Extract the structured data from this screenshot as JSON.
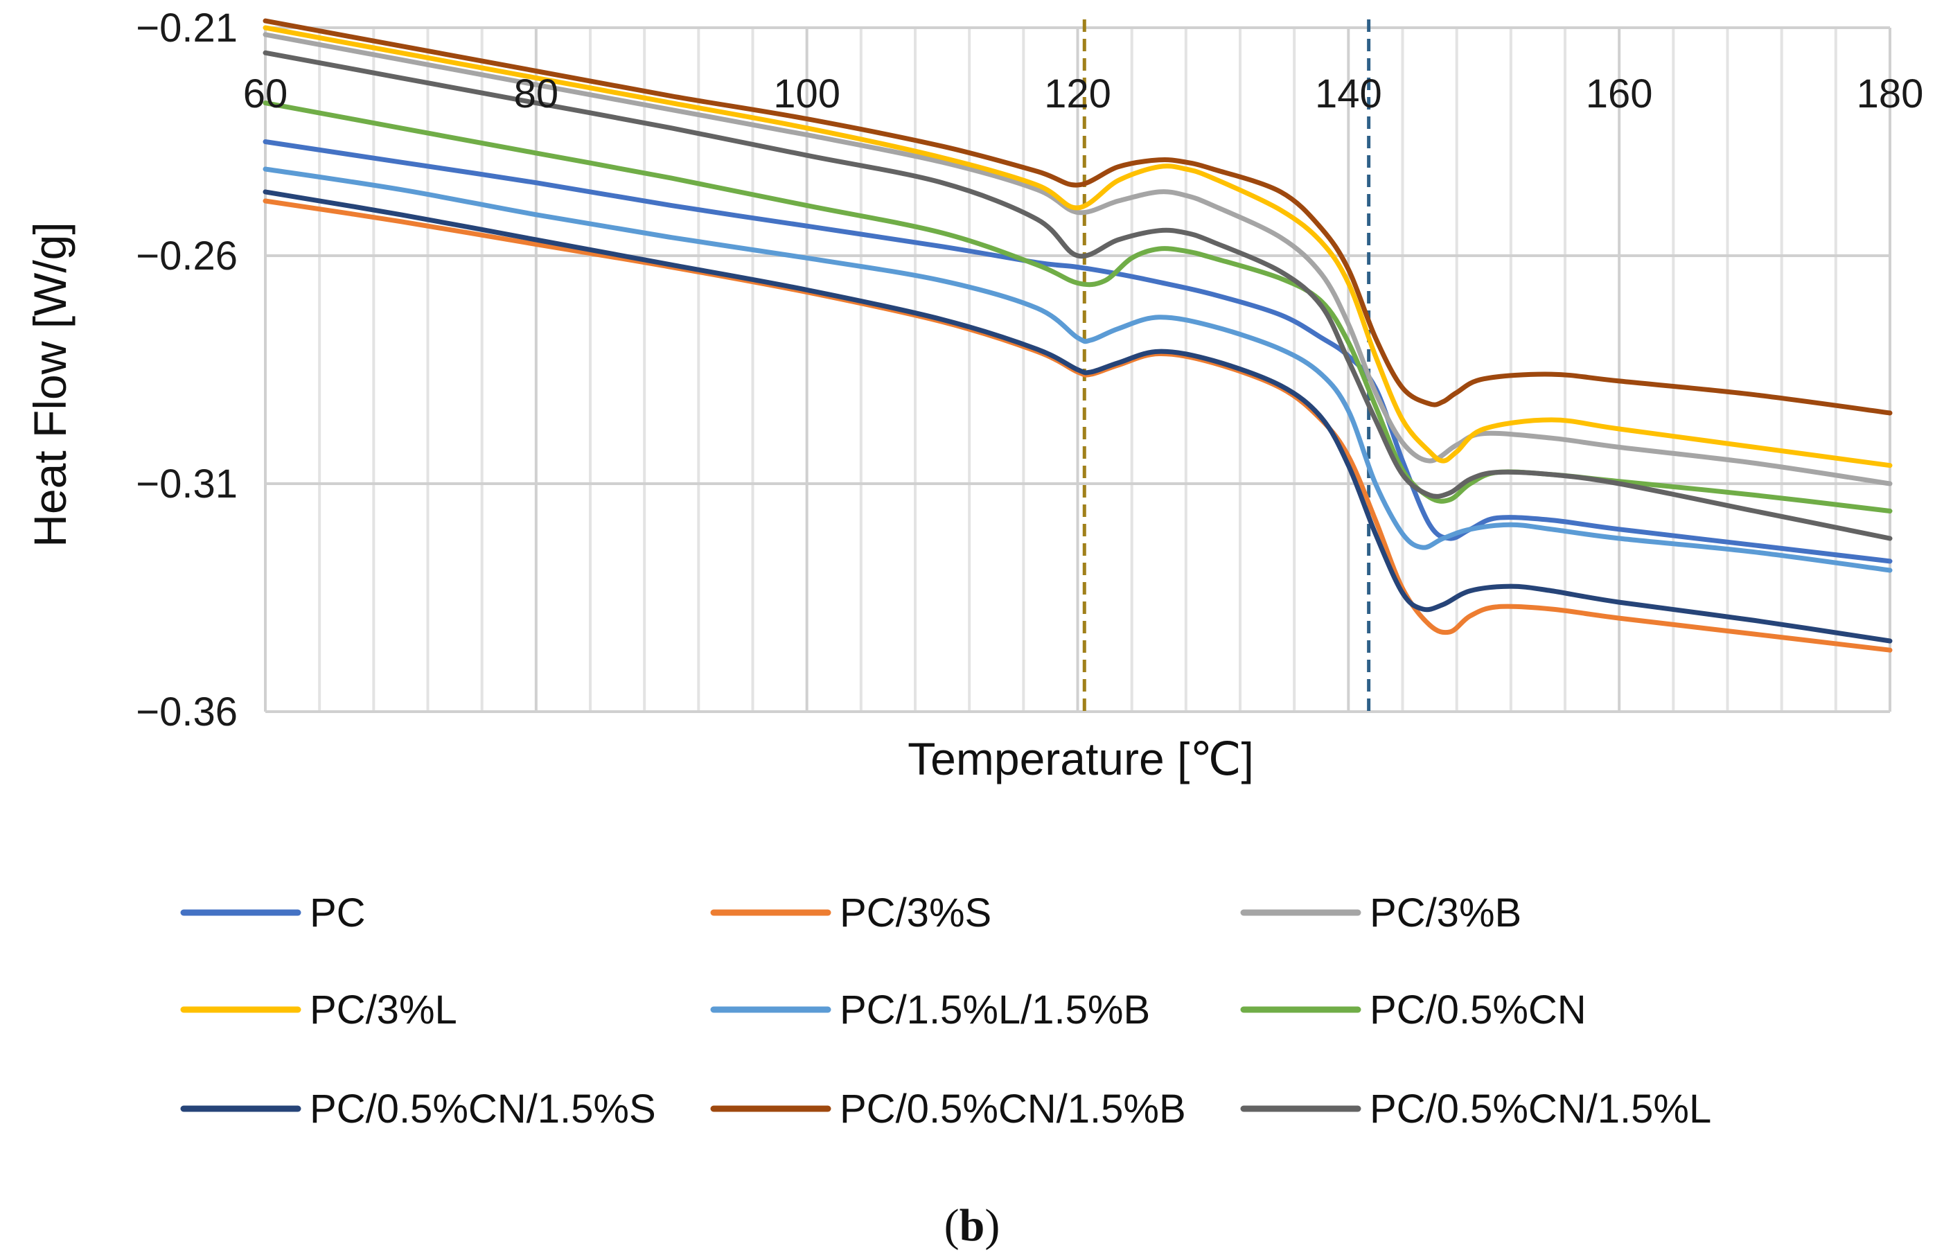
{
  "chart_data": {
    "type": "line",
    "panel_label": "b",
    "xlabel": "Temperature [℃]",
    "ylabel": "Heat Flow [W/g]",
    "xlim": [
      60,
      180
    ],
    "ylim": [
      -0.36,
      -0.21
    ],
    "xticks": [
      "60",
      "80",
      "100",
      "120",
      "140",
      "160",
      "180"
    ],
    "yticks": [
      "−0.21",
      "−0.26",
      "−0.31",
      "−0.36"
    ],
    "x_tick_values": [
      60,
      80,
      100,
      120,
      140,
      160,
      180
    ],
    "y_tick_values": [
      -0.21,
      -0.26,
      -0.31,
      -0.36
    ],
    "minor_x_step": 4,
    "vertical_markers": [
      {
        "x": 120.5,
        "color": "#a0801a",
        "style": "dashed"
      },
      {
        "x": 141.5,
        "color": "#2e6088",
        "style": "dashed"
      }
    ],
    "legend_position": "bottom",
    "series": [
      {
        "name": "PC",
        "color": "#4472c4",
        "x": [
          60,
          70,
          80,
          90,
          100,
          110,
          117,
          120,
          123,
          126,
          130,
          135,
          138,
          140,
          142,
          144,
          146,
          147.5,
          149,
          151,
          155,
          160,
          170,
          180
        ],
        "y": [
          -0.235,
          -0.2395,
          -0.244,
          -0.249,
          -0.2535,
          -0.258,
          -0.2615,
          -0.2625,
          -0.264,
          -0.2658,
          -0.2685,
          -0.273,
          -0.278,
          -0.282,
          -0.289,
          -0.305,
          -0.319,
          -0.322,
          -0.32,
          -0.3175,
          -0.318,
          -0.32,
          -0.3235,
          -0.327
        ]
      },
      {
        "name": "PC/3%S",
        "color": "#ed7d31",
        "x": [
          60,
          70,
          80,
          90,
          100,
          110,
          117,
          120,
          121,
          123,
          126,
          130,
          135,
          138,
          140,
          142,
          144,
          146,
          147.5,
          149,
          151,
          155,
          160,
          170,
          180
        ],
        "y": [
          -0.248,
          -0.2525,
          -0.2575,
          -0.2625,
          -0.268,
          -0.2745,
          -0.281,
          -0.2855,
          -0.286,
          -0.284,
          -0.2815,
          -0.2835,
          -0.289,
          -0.296,
          -0.304,
          -0.318,
          -0.333,
          -0.341,
          -0.3425,
          -0.339,
          -0.337,
          -0.3375,
          -0.3395,
          -0.343,
          -0.3465
        ]
      },
      {
        "name": "PC/3%B",
        "color": "#a5a5a5",
        "x": [
          60,
          70,
          80,
          90,
          100,
          110,
          117,
          120,
          123,
          126,
          128,
          130,
          135,
          138,
          140,
          142,
          144,
          146,
          148,
          150,
          155,
          160,
          170,
          180
        ],
        "y": [
          -0.2115,
          -0.217,
          -0.2225,
          -0.228,
          -0.2335,
          -0.2395,
          -0.2455,
          -0.2505,
          -0.248,
          -0.246,
          -0.2468,
          -0.249,
          -0.256,
          -0.264,
          -0.275,
          -0.29,
          -0.301,
          -0.305,
          -0.3015,
          -0.299,
          -0.3,
          -0.302,
          -0.3055,
          -0.31
        ]
      },
      {
        "name": "PC/3%L",
        "color": "#ffc000",
        "x": [
          60,
          70,
          80,
          90,
          100,
          110,
          117,
          120,
          123,
          126,
          128,
          130,
          135,
          138,
          140,
          142,
          144,
          146,
          147,
          148,
          150,
          155,
          160,
          170,
          180
        ],
        "y": [
          -0.21,
          -0.2155,
          -0.221,
          -0.2265,
          -0.232,
          -0.2385,
          -0.2445,
          -0.2495,
          -0.2435,
          -0.2405,
          -0.241,
          -0.243,
          -0.25,
          -0.257,
          -0.266,
          -0.282,
          -0.296,
          -0.303,
          -0.305,
          -0.303,
          -0.298,
          -0.296,
          -0.298,
          -0.302,
          -0.306
        ]
      },
      {
        "name": "PC/1.5%L/1.5%B",
        "color": "#5b9bd5",
        "x": [
          60,
          70,
          80,
          90,
          100,
          110,
          117,
          120,
          121,
          123,
          126,
          130,
          135,
          138,
          140,
          142,
          144,
          145.5,
          147,
          149,
          152,
          155,
          160,
          170,
          180
        ],
        "y": [
          -0.241,
          -0.2455,
          -0.251,
          -0.256,
          -0.2605,
          -0.2655,
          -0.2715,
          -0.278,
          -0.2785,
          -0.276,
          -0.2735,
          -0.2755,
          -0.2805,
          -0.286,
          -0.294,
          -0.31,
          -0.321,
          -0.324,
          -0.322,
          -0.32,
          -0.319,
          -0.32,
          -0.322,
          -0.325,
          -0.329
        ]
      },
      {
        "name": "PC/0.5%CN",
        "color": "#70ad47",
        "x": [
          60,
          70,
          80,
          90,
          100,
          110,
          117,
          120,
          122,
          124,
          126,
          128,
          130,
          135,
          138,
          140,
          142,
          144,
          146,
          147.5,
          149,
          151,
          155,
          160,
          170,
          180
        ],
        "y": [
          -0.2265,
          -0.232,
          -0.2375,
          -0.243,
          -0.249,
          -0.255,
          -0.262,
          -0.266,
          -0.2655,
          -0.2605,
          -0.2585,
          -0.259,
          -0.2605,
          -0.265,
          -0.27,
          -0.279,
          -0.293,
          -0.307,
          -0.313,
          -0.3135,
          -0.31,
          -0.3075,
          -0.308,
          -0.3095,
          -0.3125,
          -0.316
        ]
      },
      {
        "name": "PC/0.5%CN/1.5%S",
        "color": "#264478",
        "x": [
          60,
          70,
          80,
          90,
          100,
          110,
          117,
          120,
          121,
          123,
          126,
          130,
          135,
          138,
          140,
          142,
          144,
          145.5,
          147,
          149,
          152,
          155,
          160,
          170,
          180
        ],
        "y": [
          -0.246,
          -0.251,
          -0.2565,
          -0.262,
          -0.2675,
          -0.274,
          -0.2805,
          -0.285,
          -0.2855,
          -0.2835,
          -0.281,
          -0.283,
          -0.2885,
          -0.2955,
          -0.306,
          -0.321,
          -0.334,
          -0.3375,
          -0.3365,
          -0.3335,
          -0.3325,
          -0.3335,
          -0.336,
          -0.34,
          -0.3445
        ]
      },
      {
        "name": "PC/0.5%CN/1.5%B",
        "color": "#9e480e",
        "x": [
          60,
          70,
          80,
          90,
          100,
          110,
          117,
          120,
          123,
          126,
          128,
          130,
          135,
          138,
          140,
          142,
          144,
          146,
          147,
          148,
          150,
          155,
          160,
          170,
          180
        ],
        "y": [
          -0.2085,
          -0.214,
          -0.2195,
          -0.225,
          -0.23,
          -0.236,
          -0.2415,
          -0.2445,
          -0.2405,
          -0.239,
          -0.2395,
          -0.241,
          -0.246,
          -0.254,
          -0.263,
          -0.278,
          -0.289,
          -0.2925,
          -0.292,
          -0.29,
          -0.287,
          -0.286,
          -0.2875,
          -0.2905,
          -0.2945
        ]
      },
      {
        "name": "PC/0.5%CN/1.5%L",
        "color": "#636363",
        "x": [
          60,
          70,
          80,
          90,
          100,
          110,
          117,
          120,
          123,
          126,
          128,
          130,
          135,
          138,
          140,
          142,
          144,
          146,
          147.5,
          149,
          151,
          155,
          160,
          170,
          180
        ],
        "y": [
          -0.2155,
          -0.221,
          -0.2265,
          -0.232,
          -0.238,
          -0.244,
          -0.252,
          -0.26,
          -0.2565,
          -0.2545,
          -0.255,
          -0.257,
          -0.2635,
          -0.271,
          -0.283,
          -0.296,
          -0.308,
          -0.3125,
          -0.312,
          -0.309,
          -0.3075,
          -0.308,
          -0.31,
          -0.316,
          -0.322
        ]
      }
    ]
  }
}
